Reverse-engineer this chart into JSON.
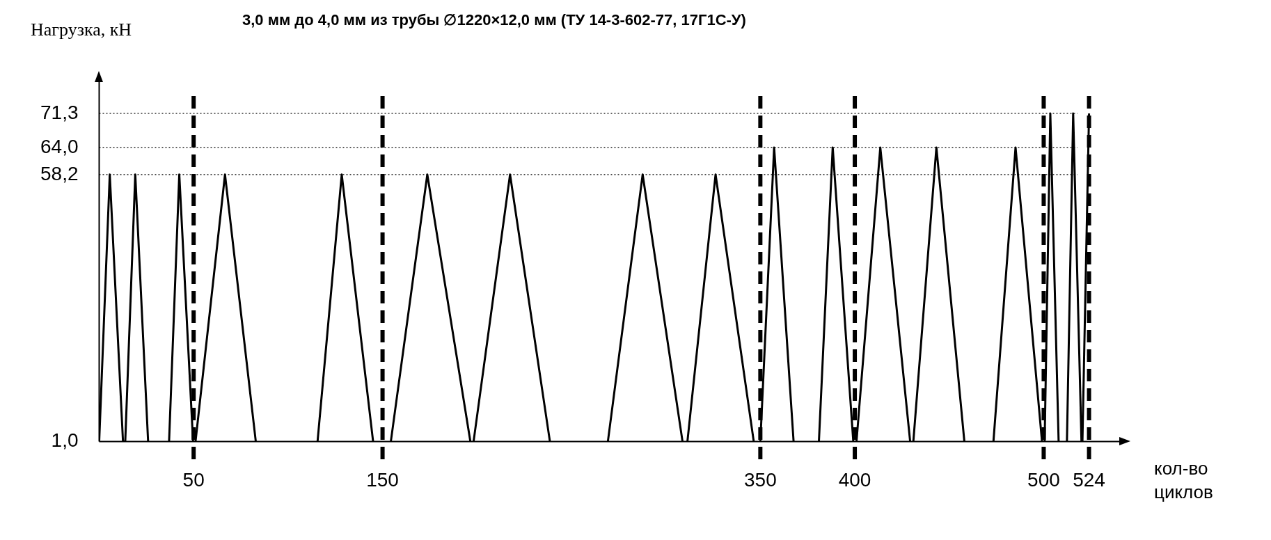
{
  "chart_data": {
    "type": "line",
    "title": "3,0 мм до 4,0 мм из трубы ∅1220×12,0 мм (ТУ 14-3-602-77, 17Г1С-У)",
    "xlabel": "кол-во циклов",
    "ylabel": "Нагрузка, кН",
    "x": [
      0,
      5.6,
      12.6,
      13.8,
      19.1,
      25.9,
      26,
      37,
      42.4,
      49.7,
      50,
      51,
      66.6,
      82.9,
      83,
      115.6,
      128.4,
      145,
      146,
      154.4,
      173.7,
      196.5,
      197,
      198.2,
      217.5,
      238.6,
      239,
      269.3,
      287.7,
      308.8,
      309,
      311.4,
      326.3,
      346.5,
      347,
      350,
      357.3,
      367.6,
      368,
      381,
      388.3,
      399.2,
      400,
      400.9,
      413.5,
      429.3,
      430,
      431,
      443.2,
      458,
      459,
      473.4,
      485.1,
      499.1,
      500,
      500.5,
      503.5,
      507.9,
      508,
      512.3,
      515.6,
      520,
      520.2,
      520.5,
      524
    ],
    "series": [
      {
        "color": "#000000",
        "values": [
          1,
          58.2,
          1,
          1,
          58.2,
          1,
          null,
          1,
          58.2,
          1,
          null,
          1,
          58.2,
          1,
          null,
          1,
          58.2,
          1,
          null,
          1,
          58.2,
          1,
          null,
          1,
          58.2,
          1,
          null,
          1,
          58.2,
          1,
          null,
          1,
          58.2,
          1,
          null,
          1,
          64,
          1,
          null,
          1,
          64,
          1,
          null,
          1,
          64,
          1,
          null,
          1,
          64,
          1,
          null,
          1,
          64,
          1,
          null,
          1,
          71.3,
          1,
          null,
          1,
          71.3,
          1,
          null,
          1,
          71.3
        ]
      }
    ],
    "xlim": [
      0,
      540
    ],
    "xticks": [
      50,
      150,
      350,
      400,
      500,
      524
    ],
    "ylim": [
      1,
      78
    ],
    "yticks": [
      {
        "value": 1,
        "label": "1,0"
      },
      {
        "value": 58.2,
        "label": "58,2"
      },
      {
        "value": 64,
        "label": "64,0"
      },
      {
        "value": 71.3,
        "label": "71,3"
      }
    ],
    "ref_lines": [
      {
        "axis": "y",
        "value": 58.2,
        "color": "#000000",
        "line_style": "dotted"
      },
      {
        "axis": "y",
        "value": 64,
        "color": "#000000",
        "line_style": "dotted"
      },
      {
        "axis": "y",
        "value": 71.3,
        "color": "#000000",
        "line_style": "dotted"
      },
      {
        "axis": "x",
        "value": 50,
        "color": "#000000",
        "line_style": "dashed"
      },
      {
        "axis": "x",
        "value": 150,
        "color": "#000000",
        "line_style": "dashed"
      },
      {
        "axis": "x",
        "value": 350,
        "color": "#000000",
        "line_style": "dashed"
      },
      {
        "axis": "x",
        "value": 400,
        "color": "#000000",
        "line_style": "dashed"
      },
      {
        "axis": "x",
        "value": 500,
        "color": "#000000",
        "line_style": "dashed"
      },
      {
        "axis": "x",
        "value": 524,
        "color": "#000000",
        "line_style": "dashed"
      }
    ],
    "grid": false,
    "legend": false,
    "marker": "none",
    "line_style": "solid"
  }
}
